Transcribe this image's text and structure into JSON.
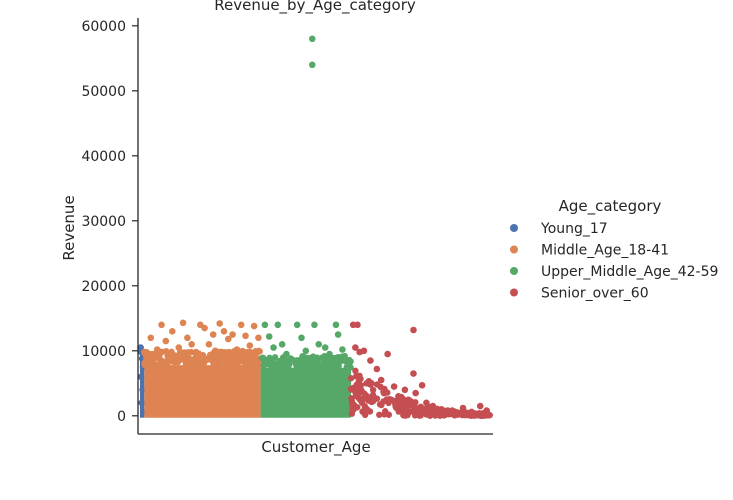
{
  "chart_data": {
    "type": "scatter",
    "title": "Revenue_by_Age_category",
    "xlabel": "Customer_Age",
    "ylabel": "Revenue",
    "ylim": [
      -2800,
      61200
    ],
    "yticks": [
      0,
      10000,
      20000,
      30000,
      40000,
      50000,
      60000
    ],
    "grid": false,
    "legend": {
      "title": "Age_category",
      "placement": "right"
    },
    "series": [
      {
        "name": "Young_17",
        "color": "#4c72b0",
        "x_range": [
          0,
          2
        ],
        "points": [
          [
            0.3,
            10500
          ],
          [
            0.6,
            9800
          ],
          [
            1,
            8800
          ],
          [
            1.4,
            7500
          ],
          [
            0.5,
            6000
          ],
          [
            1.2,
            4000
          ],
          [
            0.8,
            2000
          ],
          [
            1.5,
            500
          ]
        ]
      },
      {
        "name": "Middle_Age_18-41",
        "color": "#dd8452",
        "x_range": [
          2,
          56
        ],
        "points": [
          [
            3,
            9000
          ],
          [
            5,
            12000
          ],
          [
            8,
            10200
          ],
          [
            10,
            14000
          ],
          [
            12,
            11500
          ],
          [
            15,
            13000
          ],
          [
            18,
            10500
          ],
          [
            20,
            14300
          ],
          [
            22,
            12000
          ],
          [
            24,
            11000
          ],
          [
            26,
            9800
          ],
          [
            28,
            14000
          ],
          [
            30,
            13500
          ],
          [
            32,
            11000
          ],
          [
            34,
            12500
          ],
          [
            35,
            10000
          ],
          [
            37,
            14200
          ],
          [
            39,
            13000
          ],
          [
            41,
            11800
          ],
          [
            43,
            12500
          ],
          [
            45,
            10200
          ],
          [
            47,
            14000
          ],
          [
            49,
            12300
          ],
          [
            51,
            10800
          ],
          [
            53,
            13800
          ],
          [
            55,
            12000
          ]
        ]
      },
      {
        "name": "Upper_Middle_Age_42-59",
        "color": "#55a868",
        "x_range": [
          56,
          98
        ],
        "points": [
          [
            58,
            14000
          ],
          [
            60,
            12200
          ],
          [
            62,
            10500
          ],
          [
            64,
            14000
          ],
          [
            66,
            11000
          ],
          [
            68,
            9500
          ],
          [
            70,
            8800
          ],
          [
            73,
            14000
          ],
          [
            75,
            12000
          ],
          [
            77,
            10000
          ],
          [
            80,
            54000
          ],
          [
            80,
            58000
          ],
          [
            81,
            14000
          ],
          [
            83,
            11000
          ],
          [
            86,
            10500
          ],
          [
            88,
            9500
          ],
          [
            91,
            14000
          ],
          [
            92,
            12500
          ],
          [
            94,
            10200
          ],
          [
            96,
            8500
          ]
        ]
      },
      {
        "name": "Senior_over_60",
        "color": "#c44e52",
        "x_range": [
          98,
          163
        ],
        "points": [
          [
            99,
            14000
          ],
          [
            101,
            14000
          ],
          [
            100,
            10500
          ],
          [
            102,
            9800
          ],
          [
            104,
            10000
          ],
          [
            107,
            8500
          ],
          [
            110,
            7200
          ],
          [
            112,
            5500
          ],
          [
            115,
            9500
          ],
          [
            118,
            4500
          ],
          [
            120,
            3000
          ],
          [
            123,
            4000
          ],
          [
            127,
            13200
          ],
          [
            127,
            6500
          ],
          [
            128,
            3500
          ],
          [
            131,
            4700
          ],
          [
            133,
            2000
          ],
          [
            136,
            1500
          ],
          [
            140,
            1000
          ],
          [
            145,
            800
          ],
          [
            150,
            1200
          ],
          [
            154,
            600
          ],
          [
            158,
            1500
          ],
          [
            161,
            800
          ]
        ]
      }
    ]
  }
}
